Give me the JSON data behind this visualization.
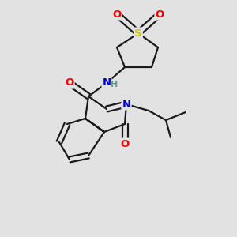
{
  "bg_color": "#e2e2e2",
  "bond_color": "#1a1a1a",
  "bond_width": 1.6,
  "atom_colors": {
    "O": "#ff0000",
    "N": "#0000cd",
    "S": "#cccc00",
    "H": "#5f9ea0",
    "C": "#1a1a1a"
  },
  "font_size": 9.5
}
